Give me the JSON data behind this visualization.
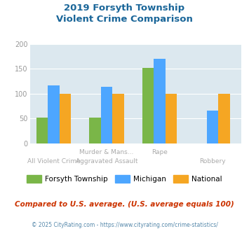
{
  "title_line1": "2019 Forsyth Township",
  "title_line2": "Violent Crime Comparison",
  "forsyth": [
    52,
    52,
    152,
    0
  ],
  "michigan": [
    116,
    113,
    170,
    65
  ],
  "national": [
    100,
    100,
    100,
    100
  ],
  "forsyth_color": "#7ab648",
  "michigan_color": "#4da6ff",
  "national_color": "#f5a623",
  "ylim": [
    0,
    200
  ],
  "yticks": [
    0,
    50,
    100,
    150,
    200
  ],
  "bg_color": "#dce8ef",
  "title_color": "#1a6699",
  "footer_text": "Compared to U.S. average. (U.S. average equals 100)",
  "copyright_text": "© 2025 CityRating.com - https://www.cityrating.com/crime-statistics/",
  "legend_labels": [
    "Forsyth Township",
    "Michigan",
    "National"
  ],
  "bar_width": 0.22,
  "top_xlabels": [
    "",
    "Murder & Mans...",
    "Rape",
    ""
  ],
  "bot_xlabels": [
    "All Violent Crime",
    "Aggravated Assault",
    "",
    "Robbery"
  ]
}
